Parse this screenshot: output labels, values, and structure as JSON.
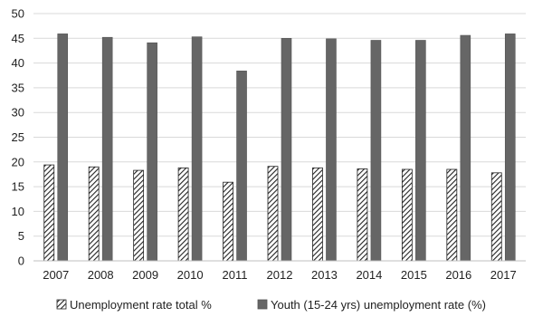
{
  "chart_data": {
    "type": "bar",
    "title": "",
    "xlabel": "",
    "ylabel": "",
    "categories": [
      "2007",
      "2008",
      "2009",
      "2010",
      "2011",
      "2012",
      "2013",
      "2014",
      "2015",
      "2016",
      "2017"
    ],
    "series": [
      {
        "name": "Unemployment rate total %",
        "values": [
          19.4,
          19.0,
          18.3,
          18.8,
          15.9,
          19.1,
          18.8,
          18.6,
          18.5,
          18.5,
          17.8
        ],
        "color": "#ffffff",
        "pattern": "diagonal-hatch"
      },
      {
        "name": "Youth (15-24 yrs) unemployment rate (%)",
        "values": [
          45.9,
          45.2,
          44.1,
          45.3,
          38.4,
          45.0,
          44.9,
          44.6,
          44.6,
          45.6,
          45.9
        ],
        "color": "#666666",
        "pattern": "solid"
      }
    ],
    "ylim": [
      0,
      50
    ],
    "yticks": [
      "0",
      "5",
      "10",
      "15",
      "20",
      "25",
      "30",
      "35",
      "40",
      "45",
      "50"
    ],
    "grid": true,
    "legend_position": "bottom"
  }
}
